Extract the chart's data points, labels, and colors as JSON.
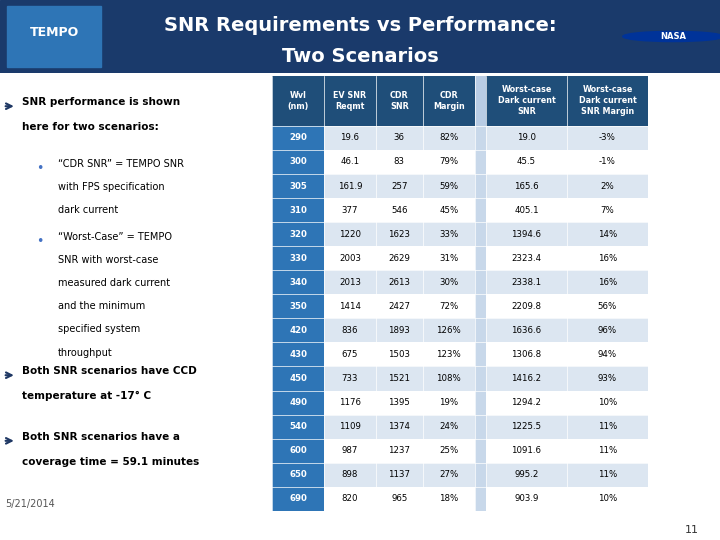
{
  "title_line1": "SNR Requirements vs Performance:",
  "title_line2": "Two Scenarios",
  "title_bg_color": "#1a3a6b",
  "title_text_color": "#ffffff",
  "body_bg_color": "#ffffff",
  "bullet_color": "#1f3864",
  "date_text": "5/21/2014",
  "page_num": "11",
  "table_header_bg": "#1f4e79",
  "table_header_text": "#ffffff",
  "table_row_even_bg": "#dce6f1",
  "table_row_odd_bg": "#ffffff",
  "table_wvl_bg": "#2e75b6",
  "table_wvl_text": "#ffffff",
  "headers": [
    "Wvl\n(nm)",
    "EV SNR\nReqmt",
    "CDR\nSNR",
    "CDR\nMargin",
    "",
    "Worst-case\nDark current\nSNR",
    "Worst-case\nDark current\nSNR Margin"
  ],
  "rows": [
    [
      "290",
      "19.6",
      "36",
      "82%",
      "",
      "19.0",
      "-3%"
    ],
    [
      "300",
      "46.1",
      "83",
      "79%",
      "",
      "45.5",
      "-1%"
    ],
    [
      "305",
      "161.9",
      "257",
      "59%",
      "",
      "165.6",
      "2%"
    ],
    [
      "310",
      "377",
      "546",
      "45%",
      "",
      "405.1",
      "7%"
    ],
    [
      "320",
      "1220",
      "1623",
      "33%",
      "",
      "1394.6",
      "14%"
    ],
    [
      "330",
      "2003",
      "2629",
      "31%",
      "",
      "2323.4",
      "16%"
    ],
    [
      "340",
      "2013",
      "2613",
      "30%",
      "",
      "2338.1",
      "16%"
    ],
    [
      "350",
      "1414",
      "2427",
      "72%",
      "",
      "2209.8",
      "56%"
    ],
    [
      "420",
      "836",
      "1893",
      "126%",
      "",
      "1636.6",
      "96%"
    ],
    [
      "430",
      "675",
      "1503",
      "123%",
      "",
      "1306.8",
      "94%"
    ],
    [
      "450",
      "733",
      "1521",
      "108%",
      "",
      "1416.2",
      "93%"
    ],
    [
      "490",
      "1176",
      "1395",
      "19%",
      "",
      "1294.2",
      "10%"
    ],
    [
      "540",
      "1109",
      "1374",
      "24%",
      "",
      "1225.5",
      "11%"
    ],
    [
      "600",
      "987",
      "1237",
      "25%",
      "",
      "1091.6",
      "11%"
    ],
    [
      "650",
      "898",
      "1137",
      "27%",
      "",
      "995.2",
      "11%"
    ],
    [
      "690",
      "820",
      "965",
      "18%",
      "",
      "903.9",
      "10%"
    ]
  ]
}
